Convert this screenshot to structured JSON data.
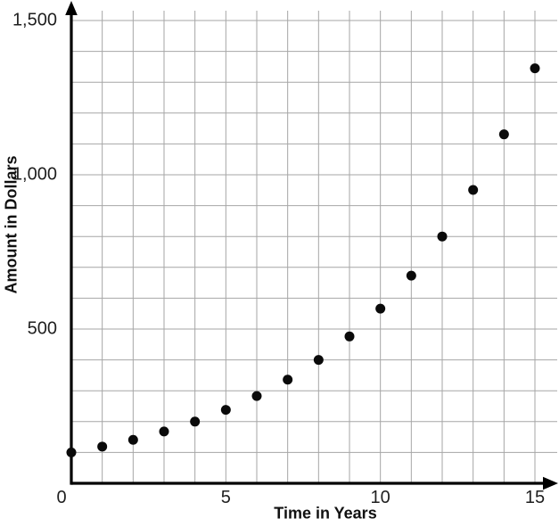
{
  "chart_data": {
    "type": "scatter",
    "title": "",
    "xlabel": "Time in Years",
    "ylabel": "Amount in Dollars",
    "x": [
      0,
      1,
      2,
      3,
      4,
      5,
      6,
      7,
      8,
      9,
      10,
      11,
      12,
      13,
      14,
      15
    ],
    "y": [
      100,
      119,
      141,
      168,
      200,
      238,
      283,
      336,
      400,
      476,
      566,
      673,
      800,
      951,
      1131,
      1345
    ],
    "xlim": [
      0,
      15
    ],
    "ylim": [
      0,
      1500
    ],
    "x_ticks": [
      0,
      5,
      10,
      15
    ],
    "x_tick_labels": [
      "0",
      "5",
      "10",
      "15"
    ],
    "y_ticks": [
      500,
      1000,
      1500
    ],
    "y_tick_labels": [
      "500",
      "1,000",
      "1,500"
    ],
    "grid": true,
    "grid_step_x": 1,
    "grid_step_y": 100,
    "legend": "none",
    "point_radius": 5.5,
    "colors": {
      "point": "#0a0a0a",
      "axis": "#000000",
      "grid": "#a6a6a6",
      "text": "#1f1f1f"
    }
  }
}
